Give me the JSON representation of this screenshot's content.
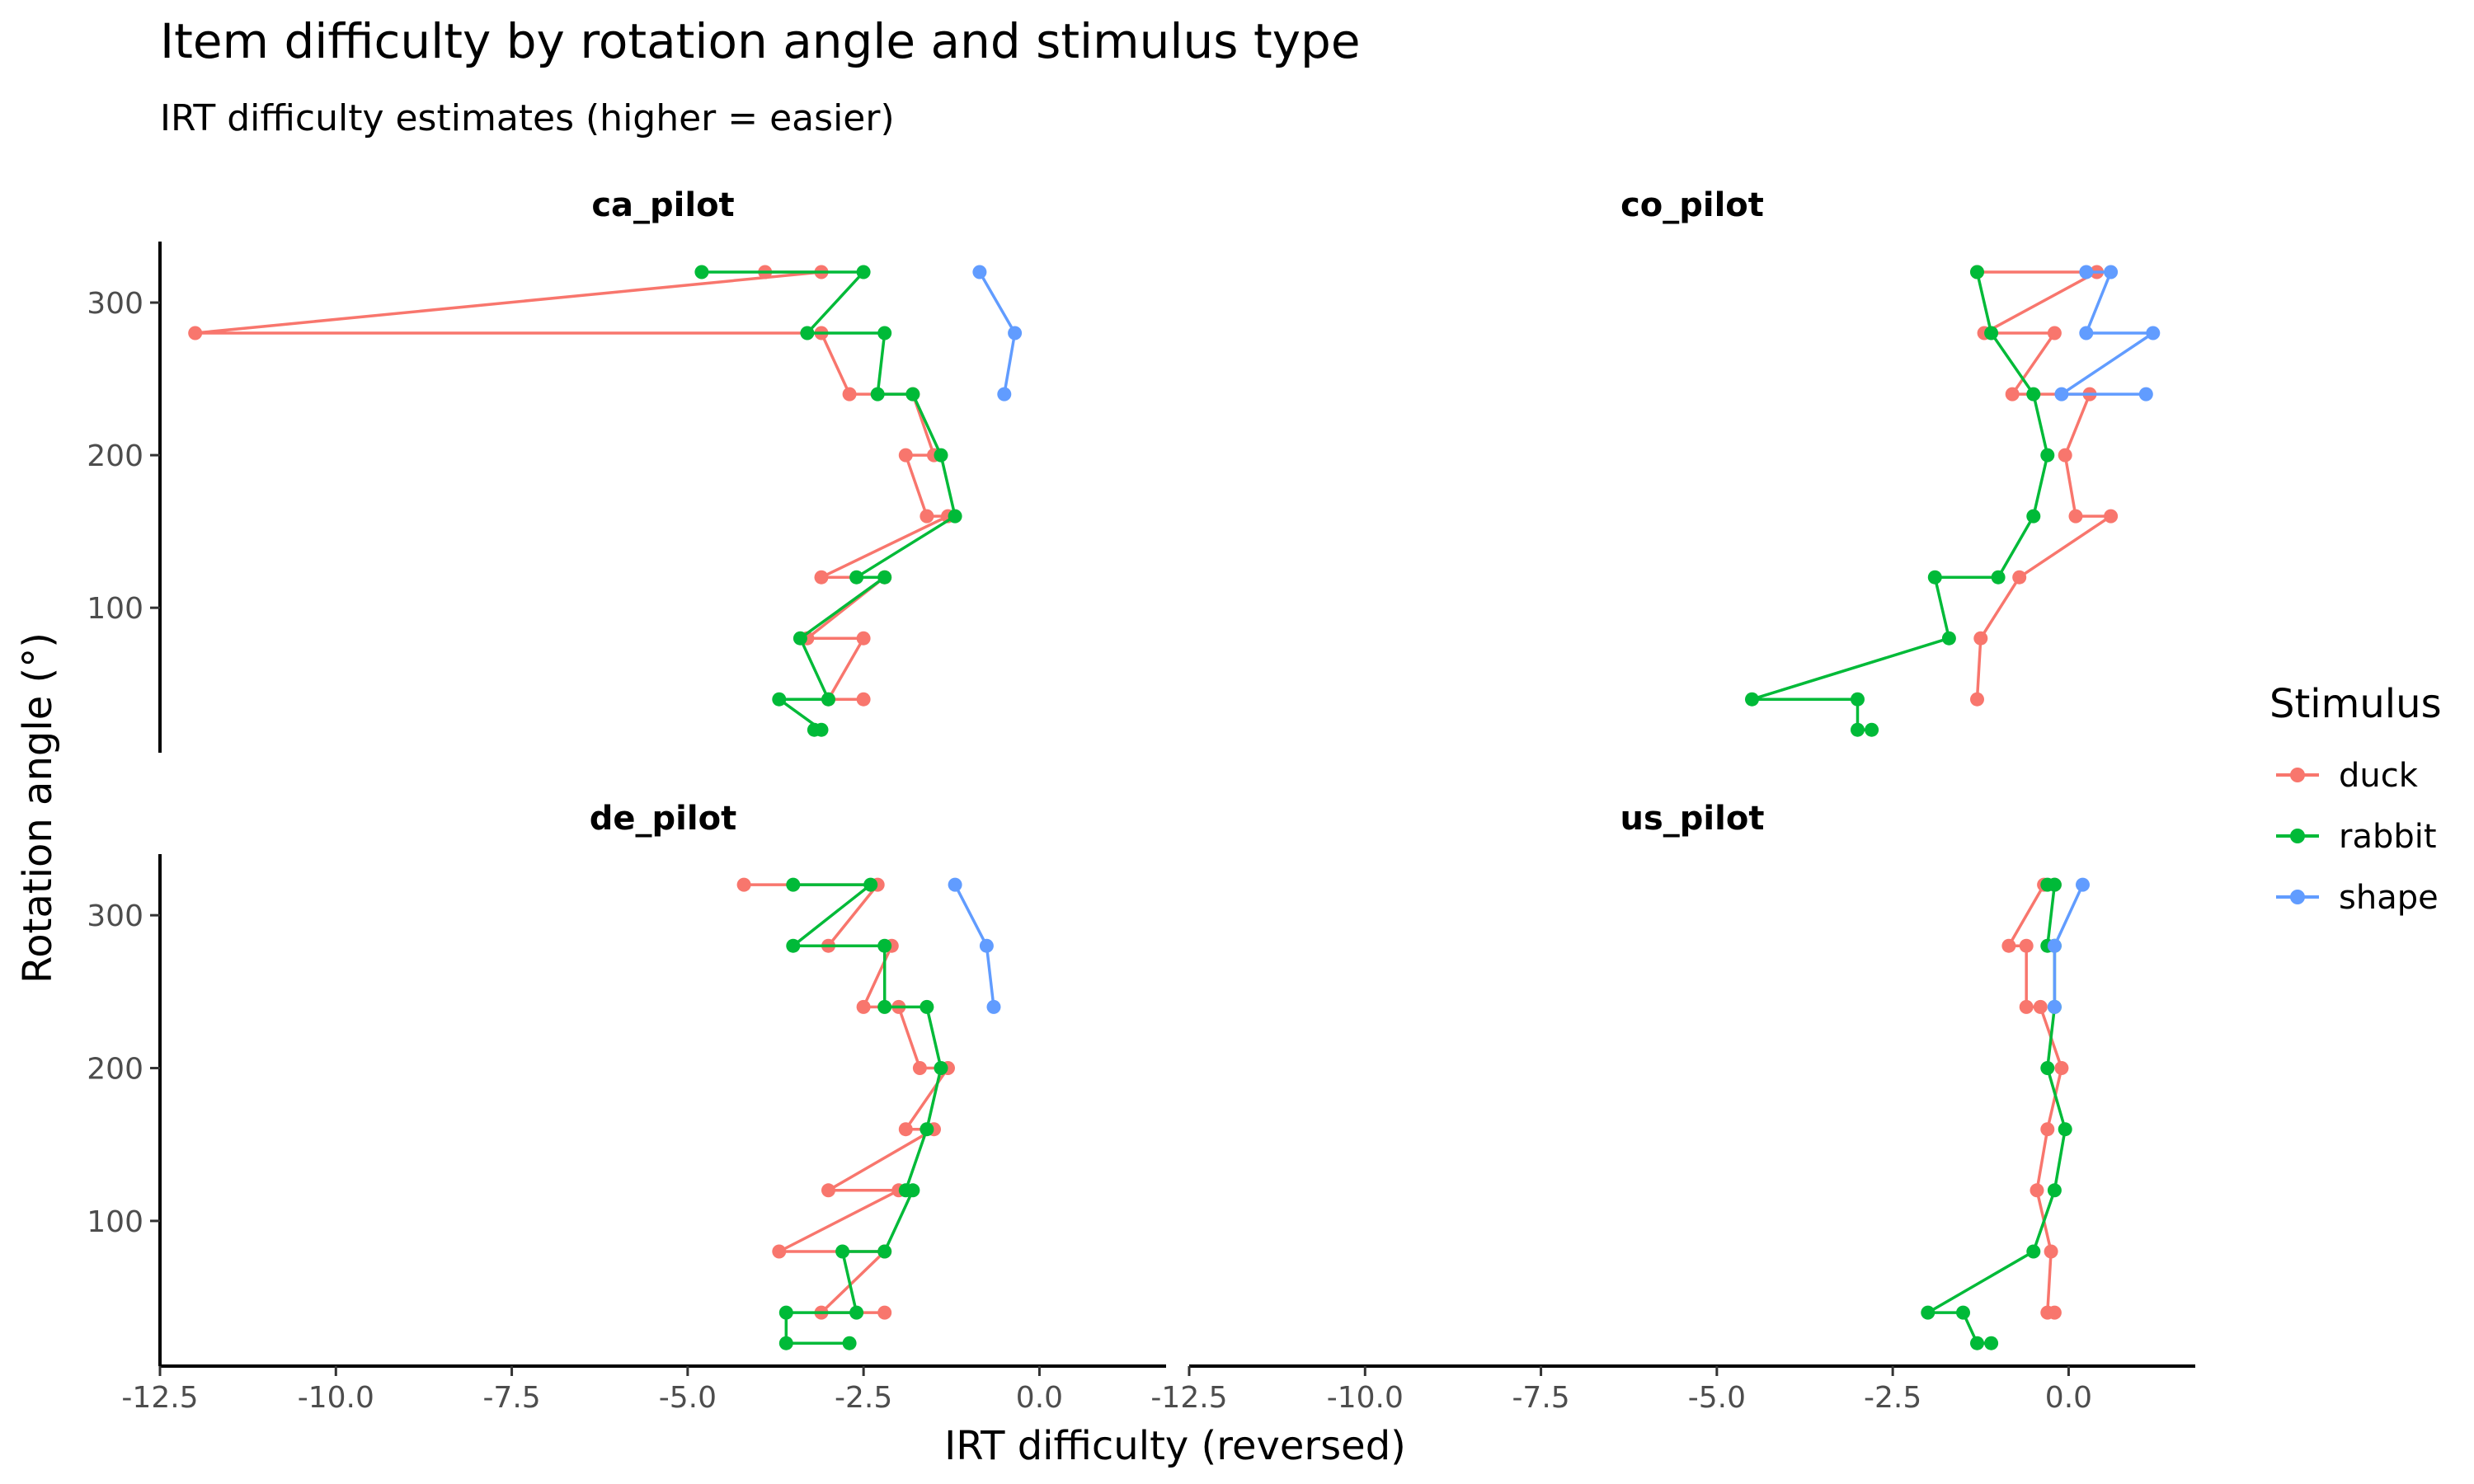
{
  "chart_data": {
    "type": "line",
    "title": "Item difficulty by rotation angle and stimulus type",
    "subtitle": "IRT difficulty estimates (higher = easier)",
    "xlabel": "IRT difficulty (reversed)",
    "ylabel": "Rotation angle (°)",
    "xlim": [
      -12.5,
      1.8
    ],
    "ylim": [
      5,
      340
    ],
    "x_ticks": [
      -12.5,
      -10.0,
      -7.5,
      -5.0,
      -2.5,
      0.0
    ],
    "x_tick_labels": [
      "-12.5",
      "-10.0",
      "-7.5",
      "-5.0",
      "-2.5",
      "0.0"
    ],
    "y_ticks": [
      100,
      200,
      300
    ],
    "y_tick_labels": [
      "100",
      "200",
      "300"
    ],
    "grid": false,
    "legend": {
      "title": "Stimulus",
      "position": "right",
      "entries": [
        {
          "name": "duck",
          "color": "#F8766D"
        },
        {
          "name": "rabbit",
          "color": "#00BA38"
        },
        {
          "name": "shape",
          "color": "#619CFF"
        }
      ]
    },
    "facets": [
      {
        "name": "ca_pilot",
        "series": [
          {
            "name": "duck",
            "color": "#F8766D",
            "points": [
              [
                -2.5,
                40
              ],
              [
                -3.0,
                40
              ],
              [
                -2.5,
                80
              ],
              [
                -3.3,
                80
              ],
              [
                -2.2,
                120
              ],
              [
                -3.1,
                120
              ],
              [
                -1.3,
                160
              ],
              [
                -1.6,
                160
              ],
              [
                -1.9,
                200
              ],
              [
                -1.5,
                200
              ],
              [
                -1.8,
                240
              ],
              [
                -2.7,
                240
              ],
              [
                -3.1,
                280
              ],
              [
                -12.0,
                280
              ],
              [
                -3.1,
                320
              ],
              [
                -3.9,
                320
              ]
            ]
          },
          {
            "name": "rabbit",
            "color": "#00BA38",
            "points": [
              [
                -3.2,
                20
              ],
              [
                -3.1,
                20
              ],
              [
                -3.7,
                40
              ],
              [
                -3.0,
                40
              ],
              [
                -3.4,
                80
              ],
              [
                -2.2,
                120
              ],
              [
                -2.6,
                120
              ],
              [
                -1.2,
                160
              ],
              [
                -1.4,
                200
              ],
              [
                -1.8,
                240
              ],
              [
                -2.3,
                240
              ],
              [
                -2.2,
                280
              ],
              [
                -3.3,
                280
              ],
              [
                -2.5,
                320
              ],
              [
                -4.8,
                320
              ]
            ]
          },
          {
            "name": "shape",
            "color": "#619CFF",
            "points": [
              [
                -0.5,
                240
              ],
              [
                -0.35,
                280
              ],
              [
                -0.85,
                320
              ]
            ]
          }
        ]
      },
      {
        "name": "co_pilot",
        "series": [
          {
            "name": "duck",
            "color": "#F8766D",
            "points": [
              [
                -1.3,
                40
              ],
              [
                -1.25,
                80
              ],
              [
                -0.7,
                120
              ],
              [
                0.6,
                160
              ],
              [
                0.1,
                160
              ],
              [
                -0.05,
                200
              ],
              [
                0.3,
                240
              ],
              [
                -0.8,
                240
              ],
              [
                -0.2,
                280
              ],
              [
                -1.2,
                280
              ],
              [
                0.4,
                320
              ],
              [
                -1.3,
                320
              ]
            ]
          },
          {
            "name": "rabbit",
            "color": "#00BA38",
            "points": [
              [
                -2.8,
                20
              ],
              [
                -3.0,
                20
              ],
              [
                -3.0,
                40
              ],
              [
                -4.5,
                40
              ],
              [
                -1.7,
                80
              ],
              [
                -1.9,
                120
              ],
              [
                -1.0,
                120
              ],
              [
                -0.5,
                160
              ],
              [
                -0.3,
                200
              ],
              [
                -0.5,
                240
              ],
              [
                -1.1,
                280
              ],
              [
                -1.3,
                320
              ]
            ]
          },
          {
            "name": "shape",
            "color": "#619CFF",
            "points": [
              [
                1.1,
                240
              ],
              [
                -0.1,
                240
              ],
              [
                1.2,
                280
              ],
              [
                0.25,
                280
              ],
              [
                0.6,
                320
              ],
              [
                0.25,
                320
              ]
            ]
          }
        ]
      },
      {
        "name": "de_pilot",
        "series": [
          {
            "name": "duck",
            "color": "#F8766D",
            "points": [
              [
                -2.2,
                40
              ],
              [
                -3.1,
                40
              ],
              [
                -2.2,
                80
              ],
              [
                -3.7,
                80
              ],
              [
                -2.0,
                120
              ],
              [
                -3.0,
                120
              ],
              [
                -1.5,
                160
              ],
              [
                -1.9,
                160
              ],
              [
                -1.3,
                200
              ],
              [
                -1.7,
                200
              ],
              [
                -2.0,
                240
              ],
              [
                -2.5,
                240
              ],
              [
                -2.1,
                280
              ],
              [
                -3.0,
                280
              ],
              [
                -2.3,
                320
              ],
              [
                -4.2,
                320
              ]
            ]
          },
          {
            "name": "rabbit",
            "color": "#00BA38",
            "points": [
              [
                -2.7,
                20
              ],
              [
                -3.6,
                20
              ],
              [
                -3.6,
                40
              ],
              [
                -2.6,
                40
              ],
              [
                -2.8,
                80
              ],
              [
                -2.2,
                80
              ],
              [
                -1.8,
                120
              ],
              [
                -1.9,
                120
              ],
              [
                -1.6,
                160
              ],
              [
                -1.4,
                200
              ],
              [
                -1.6,
                240
              ],
              [
                -2.2,
                240
              ],
              [
                -2.2,
                280
              ],
              [
                -3.5,
                280
              ],
              [
                -2.4,
                320
              ],
              [
                -3.5,
                320
              ]
            ]
          },
          {
            "name": "shape",
            "color": "#619CFF",
            "points": [
              [
                -0.65,
                240
              ],
              [
                -0.75,
                280
              ],
              [
                -1.2,
                320
              ]
            ]
          }
        ]
      },
      {
        "name": "us_pilot",
        "series": [
          {
            "name": "duck",
            "color": "#F8766D",
            "points": [
              [
                -0.2,
                40
              ],
              [
                -0.3,
                40
              ],
              [
                -0.25,
                80
              ],
              [
                -0.45,
                120
              ],
              [
                -0.3,
                160
              ],
              [
                -0.1,
                200
              ],
              [
                -0.4,
                240
              ],
              [
                -0.6,
                240
              ],
              [
                -0.6,
                280
              ],
              [
                -0.85,
                280
              ],
              [
                -0.35,
                320
              ],
              [
                -0.2,
                320
              ]
            ]
          },
          {
            "name": "rabbit",
            "color": "#00BA38",
            "points": [
              [
                -1.1,
                20
              ],
              [
                -1.3,
                20
              ],
              [
                -1.5,
                40
              ],
              [
                -2.0,
                40
              ],
              [
                -0.5,
                80
              ],
              [
                -0.2,
                120
              ],
              [
                -0.05,
                160
              ],
              [
                -0.3,
                200
              ],
              [
                -0.2,
                240
              ],
              [
                -0.2,
                280
              ],
              [
                -0.3,
                280
              ],
              [
                -0.2,
                320
              ],
              [
                -0.3,
                320
              ]
            ]
          },
          {
            "name": "shape",
            "color": "#619CFF",
            "points": [
              [
                -0.2,
                240
              ],
              [
                -0.2,
                280
              ],
              [
                0.2,
                320
              ]
            ]
          }
        ]
      }
    ]
  }
}
